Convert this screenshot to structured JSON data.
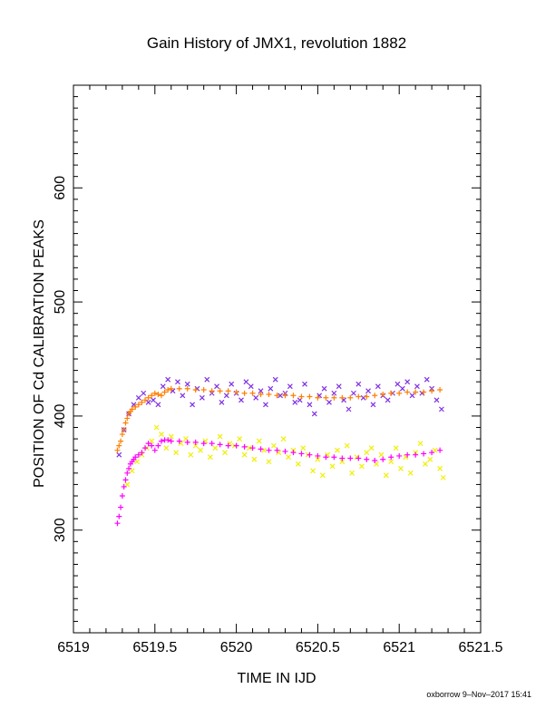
{
  "chart_data": {
    "type": "scatter",
    "title": "Gain History of JMX1, revolution 1882",
    "xlabel": "TIME IN IJD",
    "ylabel": "POSITION OF Cd CALIBRATION PEAKS",
    "xlim": [
      6519,
      6521.5
    ],
    "ylim": [
      210,
      690
    ],
    "x_ticks": [
      "6519",
      "6519.5",
      "6520",
      "6520.5",
      "6521",
      "6521.5"
    ],
    "y_ticks": [
      "300",
      "400",
      "500",
      "600"
    ],
    "grid": false,
    "footer": "oxborrow  9–Nov–2017 15:41",
    "series": [
      {
        "marker": "x",
        "color": "#7f2fe6",
        "x": [
          6519.28,
          6519.31,
          6519.34,
          6519.37,
          6519.4,
          6519.43,
          6519.46,
          6519.49,
          6519.52,
          6519.55,
          6519.58,
          6519.61,
          6519.64,
          6519.67,
          6519.7,
          6519.73,
          6519.76,
          6519.79,
          6519.82,
          6519.85,
          6519.88,
          6519.91,
          6519.94,
          6519.97,
          6520.0,
          6520.03,
          6520.06,
          6520.09,
          6520.12,
          6520.15,
          6520.18,
          6520.21,
          6520.24,
          6520.27,
          6520.3,
          6520.33,
          6520.36,
          6520.39,
          6520.42,
          6520.45,
          6520.48,
          6520.51,
          6520.54,
          6520.57,
          6520.6,
          6520.63,
          6520.66,
          6520.69,
          6520.72,
          6520.75,
          6520.78,
          6520.81,
          6520.84,
          6520.87,
          6520.9,
          6520.93,
          6520.96,
          6520.99,
          6521.02,
          6521.05,
          6521.08,
          6521.11,
          6521.14,
          6521.17,
          6521.2,
          6521.23,
          6521.26
        ],
        "y": [
          366,
          388,
          402,
          410,
          416,
          420,
          412,
          414,
          410,
          426,
          432,
          422,
          430,
          418,
          428,
          410,
          424,
          416,
          432,
          420,
          426,
          412,
          418,
          428,
          420,
          414,
          430,
          426,
          416,
          422,
          410,
          424,
          432,
          418,
          420,
          426,
          412,
          414,
          428,
          410,
          402,
          418,
          424,
          412,
          420,
          426,
          414,
          406,
          420,
          428,
          416,
          422,
          410,
          426,
          418,
          414,
          420,
          428,
          424,
          430,
          418,
          426,
          420,
          432,
          424,
          414,
          406
        ]
      },
      {
        "marker": "x",
        "color": "#f0f000",
        "x": [
          6519.33,
          6519.36,
          6519.39,
          6519.42,
          6519.45,
          6519.48,
          6519.51,
          6519.54,
          6519.57,
          6519.6,
          6519.63,
          6519.66,
          6519.69,
          6519.72,
          6519.75,
          6519.78,
          6519.81,
          6519.84,
          6519.87,
          6519.9,
          6519.93,
          6519.96,
          6519.99,
          6520.02,
          6520.05,
          6520.08,
          6520.11,
          6520.14,
          6520.17,
          6520.2,
          6520.23,
          6520.26,
          6520.29,
          6520.32,
          6520.35,
          6520.38,
          6520.41,
          6520.44,
          6520.47,
          6520.5,
          6520.53,
          6520.56,
          6520.59,
          6520.62,
          6520.65,
          6520.68,
          6520.71,
          6520.74,
          6520.77,
          6520.8,
          6520.83,
          6520.86,
          6520.89,
          6520.92,
          6520.95,
          6520.98,
          6521.01,
          6521.04,
          6521.07,
          6521.1,
          6521.13,
          6521.16,
          6521.19,
          6521.22,
          6521.25,
          6521.27
        ],
        "y": [
          340,
          352,
          360,
          366,
          372,
          378,
          390,
          384,
          372,
          382,
          368,
          376,
          380,
          366,
          374,
          370,
          378,
          364,
          372,
          382,
          368,
          376,
          374,
          380,
          366,
          372,
          362,
          378,
          370,
          360,
          374,
          368,
          380,
          364,
          370,
          358,
          372,
          366,
          352,
          362,
          348,
          366,
          356,
          370,
          360,
          374,
          350,
          364,
          356,
          368,
          372,
          358,
          366,
          348,
          360,
          372,
          354,
          364,
          350,
          368,
          376,
          358,
          362,
          370,
          354,
          346
        ]
      },
      {
        "marker": "+",
        "color": "#ff7f00",
        "x": [
          6519.27,
          6519.28,
          6519.29,
          6519.3,
          6519.31,
          6519.32,
          6519.33,
          6519.34,
          6519.35,
          6519.36,
          6519.38,
          6519.4,
          6519.42,
          6519.44,
          6519.46,
          6519.48,
          6519.5,
          6519.52,
          6519.54,
          6519.56,
          6519.58,
          6519.6,
          6519.65,
          6519.7,
          6519.75,
          6519.8,
          6519.85,
          6519.9,
          6519.95,
          6520.0,
          6520.05,
          6520.1,
          6520.15,
          6520.2,
          6520.25,
          6520.3,
          6520.35,
          6520.4,
          6520.45,
          6520.5,
          6520.55,
          6520.6,
          6520.65,
          6520.7,
          6520.75,
          6520.8,
          6520.85,
          6520.9,
          6520.95,
          6521.0,
          6521.05,
          6521.1,
          6521.15,
          6521.2,
          6521.25
        ],
        "y": [
          370,
          374,
          378,
          384,
          388,
          394,
          398,
          402,
          404,
          406,
          408,
          410,
          412,
          414,
          416,
          418,
          420,
          419,
          418,
          421,
          423,
          424,
          424,
          424,
          423,
          423,
          422,
          422,
          422,
          421,
          420,
          420,
          419,
          419,
          418,
          418,
          418,
          417,
          417,
          416,
          416,
          416,
          416,
          416,
          417,
          417,
          418,
          419,
          420,
          420,
          421,
          421,
          421,
          422,
          423
        ]
      },
      {
        "marker": "+",
        "color": "#ff00ff",
        "x": [
          6519.27,
          6519.28,
          6519.29,
          6519.3,
          6519.31,
          6519.32,
          6519.33,
          6519.34,
          6519.35,
          6519.36,
          6519.37,
          6519.38,
          6519.4,
          6519.42,
          6519.44,
          6519.46,
          6519.48,
          6519.5,
          6519.52,
          6519.54,
          6519.56,
          6519.58,
          6519.6,
          6519.65,
          6519.7,
          6519.75,
          6519.8,
          6519.85,
          6519.9,
          6519.95,
          6520.0,
          6520.05,
          6520.1,
          6520.15,
          6520.2,
          6520.25,
          6520.3,
          6520.35,
          6520.4,
          6520.45,
          6520.5,
          6520.55,
          6520.6,
          6520.65,
          6520.7,
          6520.75,
          6520.8,
          6520.85,
          6520.9,
          6520.95,
          6521.0,
          6521.05,
          6521.1,
          6521.15,
          6521.2,
          6521.25
        ],
        "y": [
          306,
          312,
          320,
          330,
          338,
          344,
          350,
          354,
          358,
          360,
          362,
          364,
          366,
          368,
          372,
          376,
          374,
          370,
          374,
          378,
          379,
          379,
          378,
          378,
          377,
          377,
          376,
          376,
          375,
          374,
          374,
          373,
          372,
          371,
          370,
          370,
          369,
          368,
          367,
          366,
          365,
          364,
          364,
          363,
          363,
          363,
          362,
          361,
          362,
          364,
          365,
          366,
          366,
          367,
          368,
          370
        ]
      }
    ]
  }
}
